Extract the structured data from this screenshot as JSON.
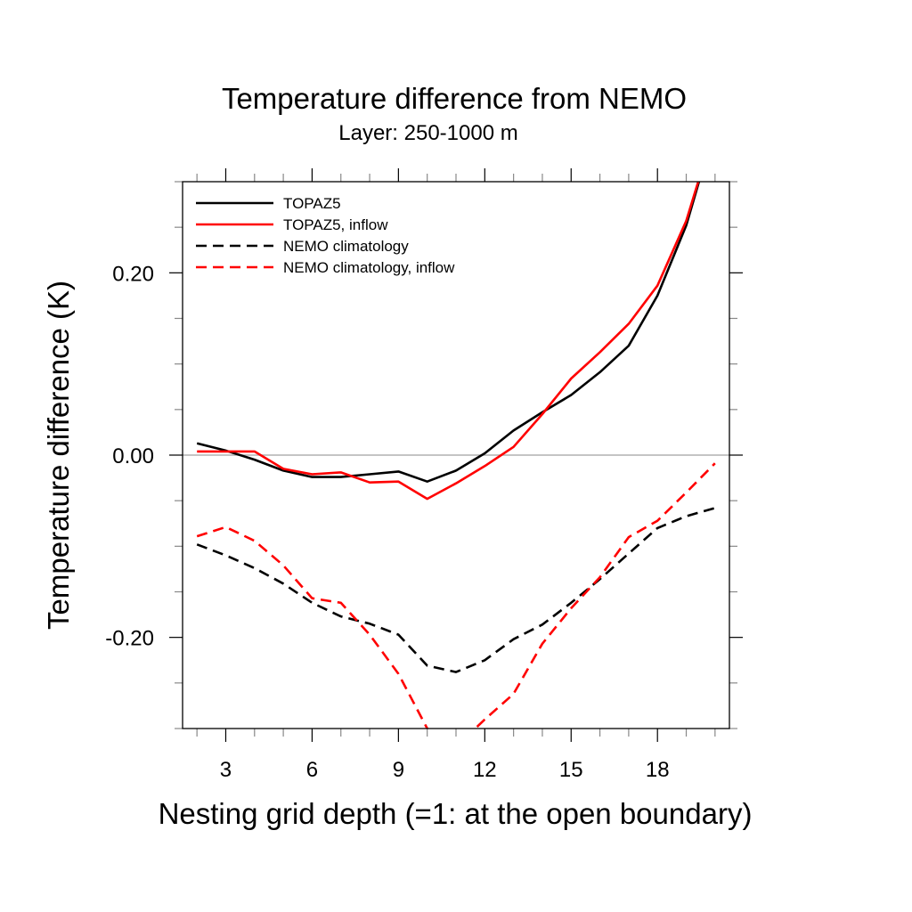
{
  "chart_data": {
    "type": "line",
    "title": "Temperature difference from NEMO",
    "subtitle": "Layer: 250-1000 m",
    "xlabel": "Nesting grid depth (=1: at the open boundary)",
    "ylabel": "Temperature difference (K)",
    "xlim": [
      1.5,
      20.5
    ],
    "ylim": [
      -0.3,
      0.3
    ],
    "x_ticks": [
      3,
      6,
      9,
      12,
      15,
      18
    ],
    "x_tick_labels": [
      "3",
      "6",
      "9",
      "12",
      "15",
      "18"
    ],
    "x_minor_step": 1,
    "y_ticks": [
      0.2,
      0.0,
      -0.2
    ],
    "y_tick_labels": [
      "0.20",
      "0.00",
      "-0.20"
    ],
    "y_minor_step": 0.05,
    "reference_line": 0.0,
    "legend_position": "top-left",
    "x": [
      2,
      3,
      4,
      5,
      6,
      7,
      8,
      9,
      10,
      11,
      12,
      13,
      14,
      15,
      16,
      17,
      18,
      19,
      20
    ],
    "series": [
      {
        "name": "TOPAZ5",
        "color": "#000000",
        "dash": "solid",
        "values": [
          0.013,
          0.005,
          -0.005,
          -0.017,
          -0.024,
          -0.024,
          -0.021,
          -0.018,
          -0.029,
          -0.017,
          0.002,
          0.027,
          0.047,
          0.066,
          0.091,
          0.12,
          0.175,
          0.252,
          0.36
        ]
      },
      {
        "name": "TOPAZ5, inflow",
        "color": "#ff0000",
        "dash": "solid",
        "values": [
          0.004,
          0.004,
          0.004,
          -0.015,
          -0.021,
          -0.019,
          -0.03,
          -0.029,
          -0.048,
          -0.031,
          -0.012,
          0.009,
          0.045,
          0.084,
          0.113,
          0.144,
          0.186,
          0.257,
          0.36
        ]
      },
      {
        "name": "NEMO climatology",
        "color": "#000000",
        "dash": "dashed",
        "values": [
          -0.098,
          -0.11,
          -0.124,
          -0.141,
          -0.162,
          -0.177,
          -0.185,
          -0.197,
          -0.231,
          -0.238,
          -0.225,
          -0.202,
          -0.186,
          -0.162,
          -0.136,
          -0.108,
          -0.08,
          -0.067,
          -0.058
        ]
      },
      {
        "name": "NEMO climatology, inflow",
        "color": "#ff0000",
        "dash": "dashed",
        "values": [
          -0.089,
          -0.079,
          -0.094,
          -0.121,
          -0.157,
          -0.162,
          -0.197,
          -0.24,
          -0.3,
          -0.32,
          -0.29,
          -0.262,
          -0.207,
          -0.168,
          -0.134,
          -0.09,
          -0.072,
          -0.041,
          -0.009
        ]
      }
    ]
  }
}
